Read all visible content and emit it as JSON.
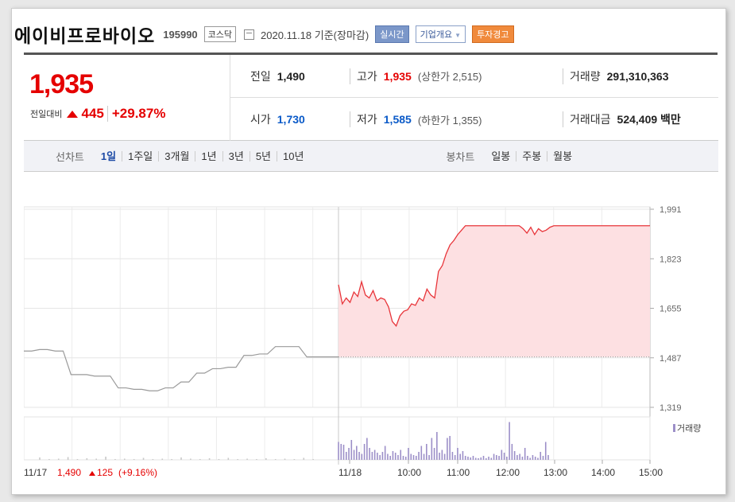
{
  "header": {
    "corp_name": "에이비프로바이오",
    "corp_code": "195990",
    "market_badge": "코스닥",
    "date_text": "2020.11.18 기준(장마감)",
    "btn_realtime": "실시간",
    "btn_overview": "기업개요",
    "btn_warning": "투자경고"
  },
  "price": {
    "now": "1,935",
    "change_label": "전일대비",
    "change_amount": "445",
    "change_rate": "+29.87%"
  },
  "stats": {
    "prev_label": "전일",
    "prev_value": "1,490",
    "high_label": "고가",
    "high_value": "1,935",
    "high_sub": "(상한가 2,515)",
    "volume_label": "거래량",
    "volume_value": "291,310,363",
    "open_label": "시가",
    "open_value": "1,730",
    "low_label": "저가",
    "low_value": "1,585",
    "low_sub": "(하한가 1,355)",
    "amount_label": "거래대금",
    "amount_value": "524,409 백만"
  },
  "period": {
    "line_label": "선차트",
    "line_tabs": [
      "1일",
      "1주일",
      "3개월",
      "1년",
      "3년",
      "5년",
      "10년"
    ],
    "active_tab": "1일",
    "candle_label": "봉차트",
    "candle_tabs": [
      "일봉",
      "주봉",
      "월봉"
    ]
  },
  "colors": {
    "up": "#e50000",
    "down": "#0a5ac8",
    "today_line": "#e8353a",
    "today_fill": "#fde0e2",
    "prev_line": "#9a9a9a",
    "volume": "#9c8fc8"
  },
  "chart_data": {
    "type": "line",
    "y_ticks": [
      "1,991",
      "1,823",
      "1,655",
      "1,487",
      "1,319"
    ],
    "ylim": [
      1319,
      1991
    ],
    "x_ticks": [
      "11/18",
      "10:00",
      "11:00",
      "12:00",
      "13:00",
      "14:00",
      "15:00"
    ],
    "volume_label": "거래량",
    "prev_day_caption": "11/17",
    "prev_day_close": "1,490",
    "prev_day_change": "125",
    "prev_day_rate": "(+9.16%)",
    "baseline": 1490,
    "series": [
      {
        "name": "11/17",
        "values": [
          1510,
          1510,
          1515,
          1515,
          1510,
          1510,
          1430,
          1430,
          1430,
          1425,
          1425,
          1425,
          1385,
          1385,
          1380,
          1380,
          1375,
          1375,
          1385,
          1385,
          1405,
          1405,
          1435,
          1435,
          1450,
          1450,
          1455,
          1455,
          1495,
          1495,
          1500,
          1500,
          1525,
          1525,
          1525,
          1525,
          1490,
          1490
        ]
      },
      {
        "name": "11/18",
        "values": [
          1735,
          1670,
          1690,
          1675,
          1710,
          1695,
          1745,
          1700,
          1690,
          1715,
          1680,
          1690,
          1685,
          1660,
          1610,
          1595,
          1630,
          1645,
          1650,
          1670,
          1665,
          1690,
          1680,
          1720,
          1700,
          1690,
          1780,
          1800,
          1840,
          1870,
          1885,
          1905,
          1920,
          1935,
          1935,
          1935,
          1935,
          1935,
          1935,
          1935,
          1935,
          1935,
          1935,
          1935,
          1935,
          1935,
          1935,
          1935,
          1925,
          1910,
          1930,
          1905,
          1925,
          1915,
          1920,
          1930,
          1935,
          1935,
          1935,
          1935,
          1935,
          1935,
          1935,
          1935,
          1935,
          1935,
          1935,
          1935,
          1935,
          1935,
          1935,
          1935,
          1935,
          1935,
          1935,
          1935,
          1935,
          1935,
          1935,
          1935,
          1935,
          1935
        ]
      }
    ],
    "volume_values": [
      0.06,
      0.02,
      0.03,
      0.07,
      0.02,
      0.04,
      0.03,
      0.08,
      0.02,
      0.03,
      0.02,
      0.05,
      0.02,
      0.03,
      0.02,
      0.06,
      0.03,
      0.02,
      0.04,
      0.02,
      0.05,
      0.02,
      0.03,
      0.02,
      0.04,
      0.02,
      0.03,
      0.02,
      0.05,
      0.02,
      0.45,
      0.4,
      0.38,
      0.2,
      0.3,
      0.5,
      0.25,
      0.35,
      0.2,
      0.15,
      0.4,
      0.55,
      0.3,
      0.2,
      0.25,
      0.18,
      0.12,
      0.2,
      0.35,
      0.15,
      0.1,
      0.22,
      0.18,
      0.12,
      0.25,
      0.1,
      0.08,
      0.3,
      0.15,
      0.12,
      0.1,
      0.2,
      0.35,
      0.15,
      0.4,
      0.12,
      0.55,
      0.3,
      0.7,
      0.18,
      0.25,
      0.15,
      0.55,
      0.6,
      0.2,
      0.12,
      0.3,
      0.15,
      0.22,
      0.1,
      0.08,
      0.06,
      0.1,
      0.05,
      0.04,
      0.06,
      0.1,
      0.04,
      0.08,
      0.05,
      0.15,
      0.12,
      0.1,
      0.25,
      0.18,
      0.08,
      0.95,
      0.4,
      0.22,
      0.12,
      0.15,
      0.08,
      0.3,
      0.1,
      0.05,
      0.12,
      0.08,
      0.05,
      0.2,
      0.1,
      0.45,
      0.12
    ]
  }
}
